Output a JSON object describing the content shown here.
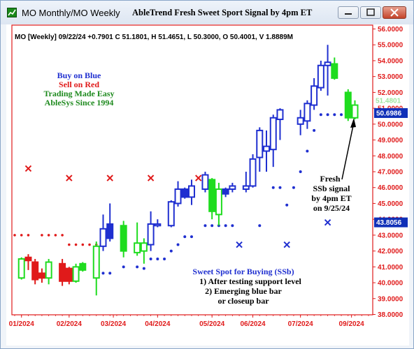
{
  "window": {
    "title": "MO Monthly/MO Weekly",
    "chart_title": "AbleTrend Fresh Sweet Sport Signal by 4pm ET"
  },
  "info_line": "MO [Weekly] 09/22/24 +0.7901 C 51.1801, H 51.4651, L 50.3000, O 50.4001, V 1.8889M",
  "legend": {
    "line1": "Buy on Blue",
    "line2": "Sell on Red",
    "line3": "Trading Made Easy",
    "line4": "AbleSys Since 1994"
  },
  "annotation_fresh": [
    "Fresh",
    "SSb signal",
    "by 4pm ET",
    "on 9/25/24"
  ],
  "annotation_sweet": [
    "Sweet Spot for Buying (SSb)",
    "1) After testing support level",
    "2) Emerging blue bar",
    "or closeup bar"
  ],
  "price_tags": {
    "ghost": "51.4801",
    "current": "50.6986",
    "support": "43.8056"
  },
  "colors": {
    "blue": "#1f2fd0",
    "red": "#e01a1a",
    "green": "#1fdc1f",
    "axis_red": "#e01a1a",
    "tag_bg": "#1030b8"
  },
  "chart_data": {
    "type": "candlestick",
    "title": "AbleTrend Fresh Sweet Sport Signal by 4pm ET",
    "ylim": [
      38.0,
      56.0
    ],
    "yticks": [
      "38.0000",
      "39.0000",
      "40.0000",
      "41.0000",
      "42.0000",
      "43.0000",
      "44.0000",
      "45.0000",
      "46.0000",
      "47.0000",
      "48.0000",
      "49.0000",
      "50.0000",
      "51.0000",
      "52.0000",
      "53.0000",
      "54.0000",
      "55.0000",
      "56.0000"
    ],
    "xticks": [
      "01/2024",
      "02/2024",
      "03/2024",
      "04/2024",
      "05/2024",
      "06/2024",
      "07/2024",
      "09/2024"
    ],
    "xtick_index": [
      1,
      8,
      14.5,
      21,
      29,
      35,
      42,
      49.5
    ],
    "bars": [
      {
        "i": 1,
        "o": 40.3,
        "h": 41.6,
        "l": 40.2,
        "c": 41.5,
        "color": "green",
        "filled": false
      },
      {
        "i": 2,
        "o": 41.4,
        "h": 41.8,
        "l": 40.8,
        "c": 41.6,
        "color": "red",
        "filled": true
      },
      {
        "i": 3,
        "o": 41.3,
        "h": 41.5,
        "l": 39.9,
        "c": 40.2,
        "color": "red",
        "filled": true
      },
      {
        "i": 4,
        "o": 40.6,
        "h": 40.9,
        "l": 40.0,
        "c": 40.3,
        "color": "red",
        "filled": true
      },
      {
        "i": 5,
        "o": 40.3,
        "h": 41.5,
        "l": 39.9,
        "c": 41.3,
        "color": "green",
        "filled": false
      },
      {
        "i": 7,
        "o": 41.2,
        "h": 41.5,
        "l": 39.8,
        "c": 40.1,
        "color": "red",
        "filled": true
      },
      {
        "i": 8,
        "o": 40.9,
        "h": 41.0,
        "l": 39.9,
        "c": 40.1,
        "color": "red",
        "filled": true
      },
      {
        "i": 9,
        "o": 40.1,
        "h": 41.2,
        "l": 40.0,
        "c": 41.0,
        "color": "green",
        "filled": false
      },
      {
        "i": 10,
        "o": 40.8,
        "h": 41.3,
        "l": 40.7,
        "c": 41.2,
        "color": "green",
        "filled": true
      },
      {
        "i": 12,
        "o": 40.3,
        "h": 42.6,
        "l": 39.2,
        "c": 42.3,
        "color": "green",
        "filled": false
      },
      {
        "i": 13,
        "o": 42.3,
        "h": 44.3,
        "l": 42.0,
        "c": 43.4,
        "color": "blue",
        "filled": false
      },
      {
        "i": 14,
        "o": 42.8,
        "h": 45.0,
        "l": 42.6,
        "c": 43.7,
        "color": "blue",
        "filled": true
      },
      {
        "i": 16,
        "o": 43.6,
        "h": 43.9,
        "l": 41.6,
        "c": 42.0,
        "color": "green",
        "filled": true
      },
      {
        "i": 18,
        "o": 42.5,
        "h": 43.8,
        "l": 41.7,
        "c": 41.9,
        "color": "green",
        "filled": false
      },
      {
        "i": 19,
        "o": 42.0,
        "h": 42.8,
        "l": 41.2,
        "c": 42.5,
        "color": "green",
        "filled": false
      },
      {
        "i": 20,
        "o": 42.4,
        "h": 44.5,
        "l": 42.0,
        "c": 43.7,
        "color": "blue",
        "filled": false
      },
      {
        "i": 21,
        "o": 43.6,
        "h": 44.0,
        "l": 43.5,
        "c": 43.7,
        "color": "blue",
        "filled": false
      },
      {
        "i": 23,
        "o": 43.6,
        "h": 45.2,
        "l": 43.5,
        "c": 45.1,
        "color": "blue",
        "filled": false
      },
      {
        "i": 24,
        "o": 45.0,
        "h": 46.4,
        "l": 44.8,
        "c": 45.9,
        "color": "blue",
        "filled": false
      },
      {
        "i": 25,
        "o": 45.9,
        "h": 46.0,
        "l": 45.3,
        "c": 45.4,
        "color": "blue",
        "filled": true
      },
      {
        "i": 26,
        "o": 45.4,
        "h": 46.5,
        "l": 44.9,
        "c": 46.1,
        "color": "blue",
        "filled": false
      },
      {
        "i": 28,
        "o": 45.9,
        "h": 47.0,
        "l": 45.7,
        "c": 46.8,
        "color": "blue",
        "filled": false
      },
      {
        "i": 29,
        "o": 46.5,
        "h": 46.6,
        "l": 44.0,
        "c": 44.5,
        "color": "green",
        "filled": true
      },
      {
        "i": 30,
        "o": 44.3,
        "h": 46.3,
        "l": 43.6,
        "c": 45.9,
        "color": "green",
        "filled": false
      },
      {
        "i": 31,
        "o": 45.6,
        "h": 46.0,
        "l": 45.4,
        "c": 45.9,
        "color": "blue",
        "filled": true
      },
      {
        "i": 32,
        "o": 45.9,
        "h": 46.3,
        "l": 45.7,
        "c": 46.1,
        "color": "blue",
        "filled": false
      },
      {
        "i": 34,
        "o": 45.9,
        "h": 47.0,
        "l": 45.7,
        "c": 46.1,
        "color": "blue",
        "filled": false
      },
      {
        "i": 35,
        "o": 46.1,
        "h": 48.1,
        "l": 46.0,
        "c": 47.8,
        "color": "blue",
        "filled": false
      },
      {
        "i": 36,
        "o": 47.9,
        "h": 49.8,
        "l": 47.0,
        "c": 49.6,
        "color": "blue",
        "filled": false
      },
      {
        "i": 37,
        "o": 48.3,
        "h": 49.6,
        "l": 47.0,
        "c": 48.6,
        "color": "blue",
        "filled": false
      },
      {
        "i": 38,
        "o": 48.4,
        "h": 50.6,
        "l": 47.3,
        "c": 50.4,
        "color": "blue",
        "filled": false
      },
      {
        "i": 39,
        "o": 50.3,
        "h": 51.0,
        "l": 49.0,
        "c": 50.9,
        "color": "blue",
        "filled": false
      },
      {
        "i": 42,
        "o": 50.0,
        "h": 50.9,
        "l": 49.3,
        "c": 50.4,
        "color": "blue",
        "filled": false
      },
      {
        "i": 43,
        "o": 50.2,
        "h": 51.5,
        "l": 49.7,
        "c": 51.3,
        "color": "blue",
        "filled": false
      },
      {
        "i": 44,
        "o": 51.2,
        "h": 52.9,
        "l": 50.9,
        "c": 52.4,
        "color": "blue",
        "filled": false
      },
      {
        "i": 45,
        "o": 52.3,
        "h": 54.0,
        "l": 52.1,
        "c": 53.7,
        "color": "blue",
        "filled": false
      },
      {
        "i": 46,
        "o": 53.7,
        "h": 55.0,
        "l": 51.8,
        "c": 53.9,
        "color": "blue",
        "filled": false
      },
      {
        "i": 47,
        "o": 53.8,
        "h": 54.2,
        "l": 52.8,
        "c": 52.9,
        "color": "green",
        "filled": true
      },
      {
        "i": 49,
        "o": 52.0,
        "h": 52.2,
        "l": 50.2,
        "c": 50.4,
        "color": "green",
        "filled": true
      },
      {
        "i": 50,
        "o": 50.4,
        "h": 51.5,
        "l": 50.3,
        "c": 51.2,
        "color": "green",
        "filled": false
      }
    ],
    "red_dots": [
      {
        "i": 0,
        "y": 43.0
      },
      {
        "i": 1,
        "y": 43.0
      },
      {
        "i": 2,
        "y": 43.0
      },
      {
        "i": 4,
        "y": 43.0
      },
      {
        "i": 5,
        "y": 43.0
      },
      {
        "i": 6,
        "y": 43.0
      },
      {
        "i": 7,
        "y": 43.0
      },
      {
        "i": 8,
        "y": 42.4
      },
      {
        "i": 9,
        "y": 42.4
      },
      {
        "i": 10,
        "y": 42.4
      },
      {
        "i": 11,
        "y": 42.4
      },
      {
        "i": 12,
        "y": 42.4
      }
    ],
    "blue_dots": [
      {
        "i": 13,
        "y": 40.6
      },
      {
        "i": 14,
        "y": 40.6
      },
      {
        "i": 16,
        "y": 41.0
      },
      {
        "i": 18,
        "y": 41.0
      },
      {
        "i": 19,
        "y": 40.9
      },
      {
        "i": 20,
        "y": 41.5
      },
      {
        "i": 21,
        "y": 41.5
      },
      {
        "i": 22,
        "y": 41.5
      },
      {
        "i": 23,
        "y": 42.0
      },
      {
        "i": 24,
        "y": 42.4
      },
      {
        "i": 25,
        "y": 42.9
      },
      {
        "i": 26,
        "y": 42.9
      },
      {
        "i": 28,
        "y": 43.6
      },
      {
        "i": 29,
        "y": 43.6
      },
      {
        "i": 30,
        "y": 43.6
      },
      {
        "i": 31,
        "y": 43.6
      },
      {
        "i": 32,
        "y": 43.6
      },
      {
        "i": 36,
        "y": 43.6
      },
      {
        "i": 38,
        "y": 46.0
      },
      {
        "i": 39,
        "y": 46.0
      },
      {
        "i": 40,
        "y": 44.9
      },
      {
        "i": 41,
        "y": 46.0
      },
      {
        "i": 42,
        "y": 47.0
      },
      {
        "i": 43,
        "y": 48.3
      },
      {
        "i": 44,
        "y": 49.6
      },
      {
        "i": 45,
        "y": 50.6
      },
      {
        "i": 46,
        "y": 50.6
      },
      {
        "i": 47,
        "y": 50.6
      },
      {
        "i": 48,
        "y": 50.6
      },
      {
        "i": 49,
        "y": 50.6
      },
      {
        "i": 50,
        "y": 50.6
      }
    ],
    "red_x": [
      {
        "i": 2,
        "y": 47.2
      },
      {
        "i": 8,
        "y": 46.6
      },
      {
        "i": 14,
        "y": 46.6
      },
      {
        "i": 20,
        "y": 46.6
      },
      {
        "i": 27,
        "y": 46.6
      }
    ],
    "blue_x": [
      {
        "i": 33,
        "y": 42.4
      },
      {
        "i": 40,
        "y": 42.4
      },
      {
        "i": 46,
        "y": 43.8
      }
    ],
    "cyan_marker": {
      "i": 36,
      "y": 48.0
    }
  }
}
